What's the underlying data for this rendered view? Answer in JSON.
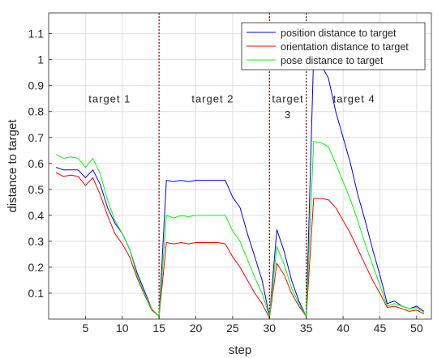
{
  "chart_data": {
    "type": "line",
    "title": "",
    "xlabel": "step",
    "ylabel": "distance to target",
    "xlim": [
      0,
      52
    ],
    "ylim": [
      0,
      1.18
    ],
    "grid": true,
    "legend_position": "top-right",
    "x_ticks": [
      5,
      10,
      15,
      20,
      25,
      30,
      35,
      40,
      45,
      50
    ],
    "y_ticks": [
      0.1,
      0.2,
      0.3,
      0.4,
      0.5,
      0.6,
      0.7,
      0.8,
      0.9,
      1,
      1.1
    ],
    "y_tick_labels": [
      "0.1",
      "0.2",
      "0.3",
      "0.4",
      "0.5",
      "0.6",
      "0.7",
      "0.8",
      "0.9",
      "1",
      "1.1"
    ],
    "x": [
      1,
      2,
      3,
      4,
      5,
      6,
      7,
      8,
      9,
      10,
      11,
      12,
      13,
      14,
      15,
      16,
      17,
      18,
      19,
      20,
      21,
      22,
      23,
      24,
      25,
      26,
      27,
      28,
      29,
      30,
      31,
      32,
      33,
      34,
      35,
      36,
      37,
      38,
      39,
      40,
      41,
      42,
      43,
      44,
      45,
      46,
      47,
      48,
      49,
      50,
      51
    ],
    "series": [
      {
        "name": "position distance to target",
        "color": "#0000ff",
        "values": [
          0.585,
          0.575,
          0.575,
          0.575,
          0.545,
          0.575,
          0.52,
          0.43,
          0.37,
          0.33,
          0.27,
          0.18,
          0.11,
          0.04,
          0.01,
          0.535,
          0.53,
          0.535,
          0.53,
          0.535,
          0.535,
          0.535,
          0.535,
          0.535,
          0.47,
          0.43,
          0.33,
          0.24,
          0.15,
          0.01,
          0.345,
          0.26,
          0.15,
          0.07,
          0.01,
          1.02,
          0.98,
          0.93,
          0.8,
          0.7,
          0.6,
          0.48,
          0.38,
          0.27,
          0.17,
          0.06,
          0.07,
          0.05,
          0.04,
          0.05,
          0.03
        ]
      },
      {
        "name": "orientation distance to target",
        "color": "#ff0000",
        "values": [
          0.565,
          0.55,
          0.555,
          0.55,
          0.515,
          0.545,
          0.48,
          0.4,
          0.33,
          0.29,
          0.24,
          0.16,
          0.095,
          0.035,
          0.01,
          0.295,
          0.29,
          0.295,
          0.29,
          0.295,
          0.295,
          0.295,
          0.295,
          0.29,
          0.24,
          0.2,
          0.15,
          0.1,
          0.06,
          0.005,
          0.215,
          0.17,
          0.1,
          0.05,
          0.01,
          0.465,
          0.465,
          0.46,
          0.43,
          0.38,
          0.33,
          0.27,
          0.21,
          0.15,
          0.1,
          0.045,
          0.05,
          0.04,
          0.03,
          0.035,
          0.02
        ]
      },
      {
        "name": "pose distance to target",
        "color": "#00ff00",
        "values": [
          0.635,
          0.62,
          0.625,
          0.62,
          0.585,
          0.62,
          0.56,
          0.46,
          0.38,
          0.33,
          0.27,
          0.17,
          0.1,
          0.04,
          0.01,
          0.4,
          0.39,
          0.4,
          0.395,
          0.4,
          0.4,
          0.4,
          0.4,
          0.4,
          0.34,
          0.3,
          0.23,
          0.16,
          0.1,
          0.01,
          0.28,
          0.21,
          0.12,
          0.06,
          0.01,
          0.685,
          0.68,
          0.665,
          0.6,
          0.53,
          0.46,
          0.38,
          0.29,
          0.21,
          0.13,
          0.05,
          0.06,
          0.05,
          0.04,
          0.045,
          0.025
        ]
      }
    ],
    "vertical_markers": [
      15,
      30,
      35
    ],
    "annotations": [
      {
        "text": "target 1",
        "x": 8.3,
        "y": 0.85
      },
      {
        "text": "target 2",
        "x": 22.3,
        "y": 0.85
      },
      {
        "text": "target",
        "x": 32.5,
        "y": 0.85
      },
      {
        "text": "3",
        "x": 32.5,
        "y": 0.79
      },
      {
        "text": "target 4",
        "x": 41.5,
        "y": 0.85
      }
    ]
  }
}
